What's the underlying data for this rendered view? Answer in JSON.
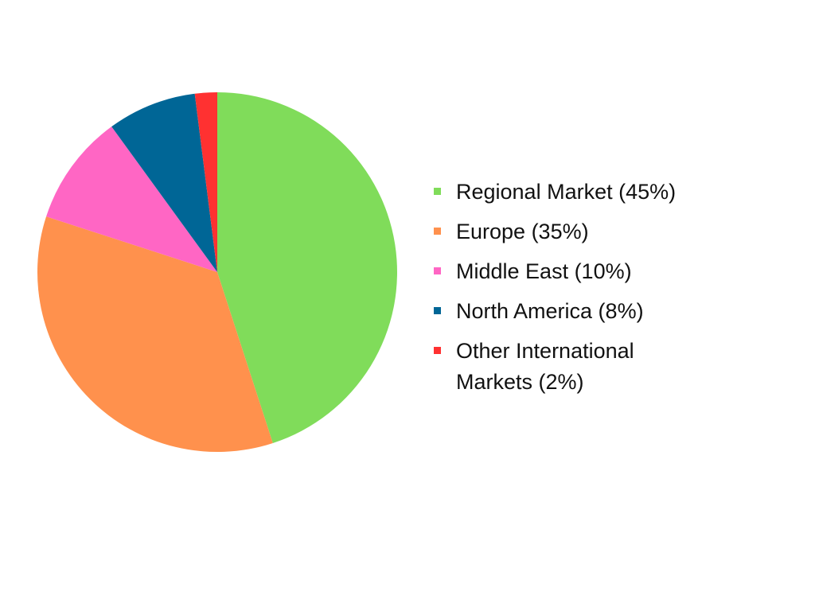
{
  "chart_data": {
    "type": "pie",
    "title": "",
    "legend_position": "right",
    "slices": [
      {
        "label": "Regional Market",
        "value": 45,
        "legend_text": "Regional Market (45%)",
        "color": "#80dc5a"
      },
      {
        "label": "Europe",
        "value": 35,
        "legend_text": "Europe (35%)",
        "color": "#ff914d"
      },
      {
        "label": "Middle East",
        "value": 10,
        "legend_text": "Middle East (10%)",
        "color": "#ff66c4"
      },
      {
        "label": "North America",
        "value": 8,
        "legend_text": "North America (8%)",
        "color": "#006696"
      },
      {
        "label": "Other International Markets",
        "value": 2,
        "legend_text": "Other International Markets (2%)",
        "color": "#ff3131"
      }
    ]
  }
}
